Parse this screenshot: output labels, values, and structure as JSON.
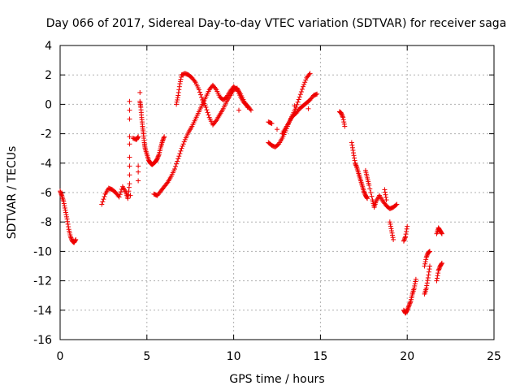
{
  "chart_data": {
    "type": "scatter",
    "title": "Day 066 of 2017, Sidereal Day-to-day VTEC variation (SDTVAR) for receiver saga",
    "xlabel": "GPS time / hours",
    "ylabel": "SDTVAR / TECUs",
    "xlim": [
      0,
      25
    ],
    "ylim": [
      -16,
      4
    ],
    "xticks": [
      "0",
      "5",
      "10",
      "15",
      "20",
      "25"
    ],
    "yticks": [
      "4",
      "2",
      "0",
      "-2",
      "-4",
      "-6",
      "-8",
      "-10",
      "-12",
      "-14",
      "-16"
    ],
    "grid": true,
    "marker": "+",
    "color": "#ee0000",
    "series": [
      {
        "points": [
          [
            0.0,
            -5.9
          ],
          [
            0.1,
            -6.2
          ],
          [
            0.2,
            -6.6
          ],
          [
            0.3,
            -7.2
          ],
          [
            0.4,
            -7.8
          ],
          [
            0.5,
            -8.5
          ],
          [
            0.6,
            -9.0
          ],
          [
            0.7,
            -9.3
          ],
          [
            0.8,
            -9.4
          ],
          [
            0.9,
            -9.2
          ],
          [
            2.4,
            -6.8
          ],
          [
            2.6,
            -6.1
          ],
          [
            2.8,
            -5.7
          ],
          [
            3.0,
            -5.8
          ],
          [
            3.2,
            -6.0
          ],
          [
            3.4,
            -6.3
          ],
          [
            3.6,
            -5.6
          ],
          [
            3.8,
            -6.0
          ],
          [
            3.9,
            -6.4
          ],
          [
            4.0,
            -5.4
          ],
          [
            4.0,
            -4.8
          ],
          [
            4.0,
            -4.2
          ],
          [
            4.0,
            -3.6
          ],
          [
            4.0,
            -2.7
          ],
          [
            4.0,
            -2.2
          ],
          [
            4.0,
            -1.0
          ],
          [
            4.0,
            -0.4
          ],
          [
            4.0,
            0.2
          ],
          [
            4.05,
            -6.2
          ],
          [
            4.2,
            -2.3
          ],
          [
            4.4,
            -2.4
          ],
          [
            4.5,
            -2.2
          ],
          [
            4.5,
            -5.2
          ],
          [
            4.5,
            -4.6
          ],
          [
            4.5,
            -4.2
          ],
          [
            4.6,
            0.8
          ],
          [
            4.6,
            0.2
          ],
          [
            4.65,
            -0.2
          ],
          [
            4.7,
            -0.9
          ],
          [
            4.75,
            -1.5
          ],
          [
            4.8,
            -2.0
          ],
          [
            4.85,
            -2.6
          ],
          [
            4.9,
            -3.0
          ],
          [
            5.0,
            -3.4
          ],
          [
            5.1,
            -3.8
          ],
          [
            5.2,
            -4.0
          ],
          [
            5.3,
            -4.1
          ],
          [
            5.4,
            -4.0
          ],
          [
            5.5,
            -3.9
          ],
          [
            5.6,
            -3.7
          ],
          [
            5.7,
            -3.4
          ],
          [
            5.8,
            -2.9
          ],
          [
            5.9,
            -2.5
          ],
          [
            6.0,
            -2.2
          ],
          [
            5.4,
            -6.1
          ],
          [
            5.6,
            -6.2
          ],
          [
            5.8,
            -5.9
          ],
          [
            6.0,
            -5.6
          ],
          [
            6.2,
            -5.3
          ],
          [
            6.4,
            -4.9
          ],
          [
            6.6,
            -4.4
          ],
          [
            6.8,
            -3.7
          ],
          [
            7.0,
            -3.0
          ],
          [
            7.2,
            -2.4
          ],
          [
            7.4,
            -1.9
          ],
          [
            7.6,
            -1.5
          ],
          [
            7.8,
            -1.0
          ],
          [
            8.0,
            -0.5
          ],
          [
            8.2,
            0.0
          ],
          [
            8.4,
            0.5
          ],
          [
            8.6,
            1.0
          ],
          [
            8.8,
            1.3
          ],
          [
            9.0,
            1.0
          ],
          [
            9.2,
            0.5
          ],
          [
            9.4,
            0.3
          ],
          [
            9.6,
            0.5
          ],
          [
            9.8,
            0.9
          ],
          [
            10.0,
            1.2
          ],
          [
            10.2,
            1.0
          ],
          [
            10.4,
            0.5
          ],
          [
            10.6,
            0.1
          ],
          [
            10.8,
            -0.1
          ],
          [
            11.0,
            -0.4
          ],
          [
            6.7,
            0.0
          ],
          [
            6.8,
            0.6
          ],
          [
            6.9,
            1.4
          ],
          [
            7.0,
            2.0
          ],
          [
            7.2,
            2.1
          ],
          [
            7.4,
            2.0
          ],
          [
            7.6,
            1.8
          ],
          [
            7.8,
            1.5
          ],
          [
            8.0,
            1.0
          ],
          [
            8.2,
            0.3
          ],
          [
            8.4,
            -0.2
          ],
          [
            8.6,
            -0.9
          ],
          [
            8.8,
            -1.4
          ],
          [
            9.0,
            -1.1
          ],
          [
            9.2,
            -0.7
          ],
          [
            9.4,
            -0.3
          ],
          [
            9.6,
            0.2
          ],
          [
            9.8,
            0.6
          ],
          [
            10.0,
            1.0
          ],
          [
            10.2,
            1.1
          ],
          [
            10.4,
            0.7
          ],
          [
            10.6,
            0.2
          ],
          [
            10.8,
            -0.2
          ],
          [
            10.3,
            -0.4
          ],
          [
            12.0,
            -2.6
          ],
          [
            12.2,
            -2.8
          ],
          [
            12.4,
            -2.9
          ],
          [
            12.6,
            -2.7
          ],
          [
            12.8,
            -2.3
          ],
          [
            13.0,
            -1.8
          ],
          [
            13.2,
            -1.2
          ],
          [
            13.4,
            -0.7
          ],
          [
            13.6,
            -0.2
          ],
          [
            13.8,
            0.5
          ],
          [
            14.0,
            1.2
          ],
          [
            14.2,
            1.8
          ],
          [
            14.4,
            2.1
          ],
          [
            12.0,
            -1.2
          ],
          [
            12.2,
            -1.3
          ],
          [
            12.5,
            -1.7
          ],
          [
            12.8,
            -2.0
          ],
          [
            13.0,
            -1.6
          ],
          [
            13.2,
            -1.2
          ],
          [
            13.4,
            -0.8
          ],
          [
            13.6,
            -0.6
          ],
          [
            13.8,
            -0.3
          ],
          [
            14.0,
            -0.1
          ],
          [
            14.2,
            0.1
          ],
          [
            14.4,
            0.3
          ],
          [
            14.6,
            0.6
          ],
          [
            14.8,
            0.7
          ],
          [
            14.3,
            -0.3
          ],
          [
            13.5,
            -0.1
          ],
          [
            16.1,
            -0.5
          ],
          [
            16.2,
            -0.6
          ],
          [
            16.3,
            -0.9
          ],
          [
            16.4,
            -1.5
          ],
          [
            16.8,
            -2.6
          ],
          [
            16.9,
            -3.3
          ],
          [
            17.0,
            -4.0
          ],
          [
            17.1,
            -4.3
          ],
          [
            17.2,
            -4.7
          ],
          [
            17.3,
            -5.1
          ],
          [
            17.4,
            -5.5
          ],
          [
            17.5,
            -5.9
          ],
          [
            17.6,
            -6.2
          ],
          [
            17.7,
            -6.4
          ],
          [
            17.6,
            -4.5
          ],
          [
            17.7,
            -5.0
          ],
          [
            17.8,
            -5.5
          ],
          [
            18.0,
            -6.5
          ],
          [
            18.1,
            -7.0
          ],
          [
            18.2,
            -6.6
          ],
          [
            18.4,
            -6.2
          ],
          [
            18.6,
            -6.6
          ],
          [
            18.8,
            -6.9
          ],
          [
            19.0,
            -7.1
          ],
          [
            19.2,
            -7.0
          ],
          [
            19.4,
            -6.8
          ],
          [
            18.7,
            -5.8
          ],
          [
            18.8,
            -6.5
          ],
          [
            19.0,
            -8.0
          ],
          [
            19.1,
            -8.6
          ],
          [
            19.2,
            -9.2
          ],
          [
            19.8,
            -9.3
          ],
          [
            19.9,
            -9.0
          ],
          [
            20.0,
            -8.3
          ],
          [
            19.8,
            -14.0
          ],
          [
            19.9,
            -14.2
          ],
          [
            20.0,
            -14.0
          ],
          [
            20.1,
            -13.7
          ],
          [
            20.2,
            -13.4
          ],
          [
            20.3,
            -12.9
          ],
          [
            20.4,
            -12.5
          ],
          [
            20.5,
            -11.9
          ],
          [
            21.0,
            -12.9
          ],
          [
            21.1,
            -12.5
          ],
          [
            21.2,
            -11.8
          ],
          [
            21.3,
            -11.0
          ],
          [
            21.0,
            -11.0
          ],
          [
            21.1,
            -10.4
          ],
          [
            21.2,
            -10.1
          ],
          [
            21.3,
            -10.0
          ],
          [
            21.7,
            -12.0
          ],
          [
            21.8,
            -11.3
          ],
          [
            21.9,
            -11.0
          ],
          [
            22.0,
            -10.8
          ],
          [
            21.7,
            -8.8
          ],
          [
            21.8,
            -8.4
          ],
          [
            21.9,
            -8.6
          ],
          [
            22.0,
            -8.8
          ]
        ]
      }
    ]
  }
}
